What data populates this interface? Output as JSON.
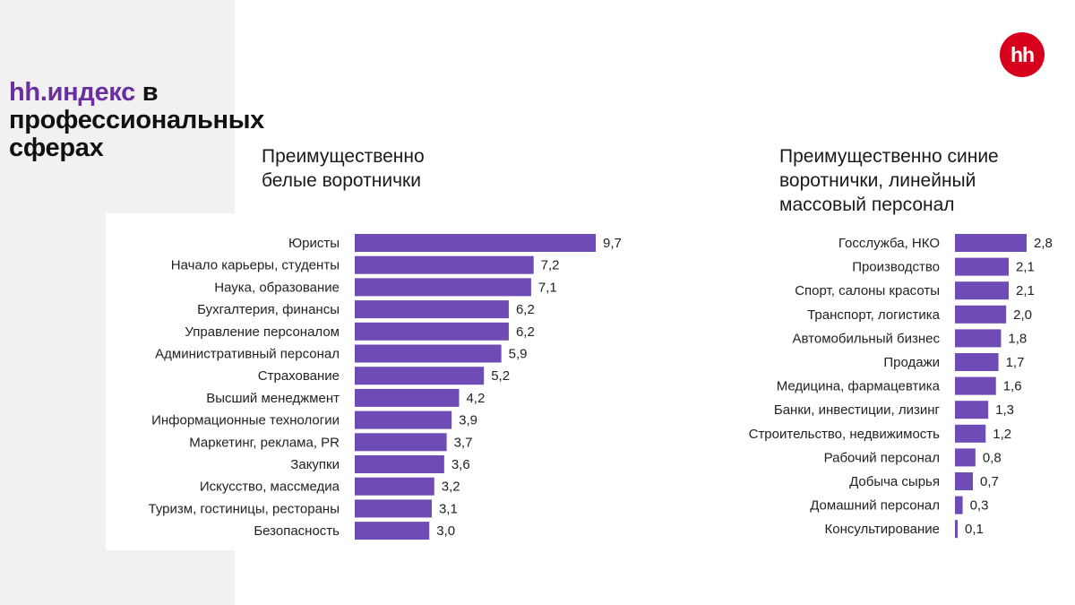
{
  "header": {
    "title_brand": "hh.индекс",
    "title_rest_1": " в",
    "title_line_2": "профессиональных",
    "title_line_3": "сферах",
    "logo_text": "hh"
  },
  "colors": {
    "bar": "#6f4bb5",
    "brand_purple": "#6a2f9e",
    "logo_red": "#d6001c"
  },
  "chart_data": [
    {
      "type": "bar",
      "orientation": "horizontal",
      "title_lines": [
        "Преимущественно",
        "белые воротнички"
      ],
      "categories": [
        "Юристы",
        "Начало карьеры, студенты",
        "Наука, образование",
        "Бухгалтерия, финансы",
        "Управление персоналом",
        "Административный персонал",
        "Страхование",
        "Высший менеджмент",
        "Информационные технологии",
        "Маркетинг, реклама, PR",
        "Закупки",
        "Искусство, массмедиа",
        "Туризм, гостиницы, рестораны",
        "Безопасность"
      ],
      "values": [
        9.7,
        7.2,
        7.1,
        6.2,
        6.2,
        5.9,
        5.2,
        4.2,
        3.9,
        3.7,
        3.6,
        3.2,
        3.1,
        3.0
      ],
      "value_labels": [
        "9,7",
        "7,2",
        "7,1",
        "6,2",
        "6,2",
        "5,9",
        "5,2",
        "4,2",
        "3,9",
        "3,7",
        "3,6",
        "3,2",
        "3,1",
        "3,0"
      ],
      "xlim": [
        0,
        9.7
      ]
    },
    {
      "type": "bar",
      "orientation": "horizontal",
      "title_lines": [
        "Преимущественно синие",
        "воротнички, линейный",
        "массовый персонал"
      ],
      "categories": [
        "Госслужба, НКО",
        "Производство",
        "Спорт, салоны красоты",
        "Транспорт, логистика",
        "Автомобильный бизнес",
        "Продажи",
        "Медицина, фармацевтика",
        "Банки, инвестиции, лизинг",
        "Строительство, недвижимость",
        "Рабочий персонал",
        "Добыча сырья",
        "Домашний персонал",
        "Консультирование"
      ],
      "values": [
        2.8,
        2.1,
        2.1,
        2.0,
        1.8,
        1.7,
        1.6,
        1.3,
        1.2,
        0.8,
        0.7,
        0.3,
        0.1
      ],
      "value_labels": [
        "2,8",
        "2,1",
        "2,1",
        "2,0",
        "1,8",
        "1,7",
        "1,6",
        "1,3",
        "1,2",
        "0,8",
        "0,7",
        "0,3",
        "0,1"
      ],
      "xlim": [
        0,
        2.8
      ]
    }
  ]
}
